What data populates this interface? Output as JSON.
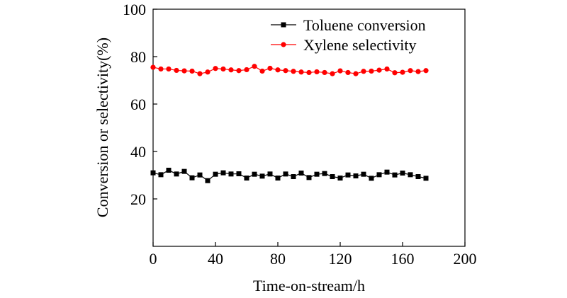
{
  "chart_data": {
    "type": "line",
    "xlabel": "Time-on-stream/h",
    "ylabel": "Conversion or selectivity(%)",
    "xlim": [
      0,
      200
    ],
    "ylim": [
      0,
      100
    ],
    "xticks": [
      0,
      40,
      80,
      120,
      160,
      200
    ],
    "yticks": [
      20,
      40,
      60,
      80,
      100
    ],
    "ytick_labels": [
      "20",
      "40",
      "60",
      "80",
      "100"
    ],
    "xtick_labels": [
      "0",
      "40",
      "80",
      "120",
      "160",
      "200"
    ],
    "grid": false,
    "legend_position": "top-right",
    "x": [
      0,
      5,
      10,
      15,
      20,
      25,
      30,
      35,
      40,
      45,
      50,
      55,
      60,
      65,
      70,
      75,
      80,
      85,
      90,
      95,
      100,
      105,
      110,
      115,
      120,
      125,
      130,
      135,
      140,
      145,
      150,
      155,
      160,
      165,
      170,
      175
    ],
    "series": [
      {
        "name": "Toluene conversion",
        "marker": "square",
        "color": "#000000",
        "values": [
          31.0,
          30.2,
          32.1,
          30.5,
          31.6,
          28.9,
          30.1,
          27.7,
          30.4,
          31.0,
          30.5,
          30.6,
          28.8,
          30.4,
          29.6,
          30.5,
          28.8,
          30.5,
          29.4,
          30.9,
          29.0,
          30.4,
          30.7,
          29.4,
          28.8,
          30.1,
          29.7,
          30.4,
          28.7,
          30.2,
          31.3,
          30.1,
          30.9,
          30.2,
          29.4,
          28.7
        ]
      },
      {
        "name": "Xylene selectivity",
        "marker": "circle",
        "color": "#ff0000",
        "values": [
          75.5,
          74.8,
          74.8,
          74.2,
          74.0,
          73.9,
          72.8,
          73.5,
          75.0,
          74.8,
          74.4,
          74.1,
          74.5,
          75.9,
          73.9,
          75.1,
          74.4,
          74.1,
          73.8,
          73.5,
          73.3,
          73.6,
          73.3,
          72.8,
          74.0,
          73.3,
          72.8,
          73.8,
          73.9,
          74.3,
          74.8,
          73.2,
          73.4,
          74.1,
          73.7,
          74.1
        ]
      }
    ]
  }
}
